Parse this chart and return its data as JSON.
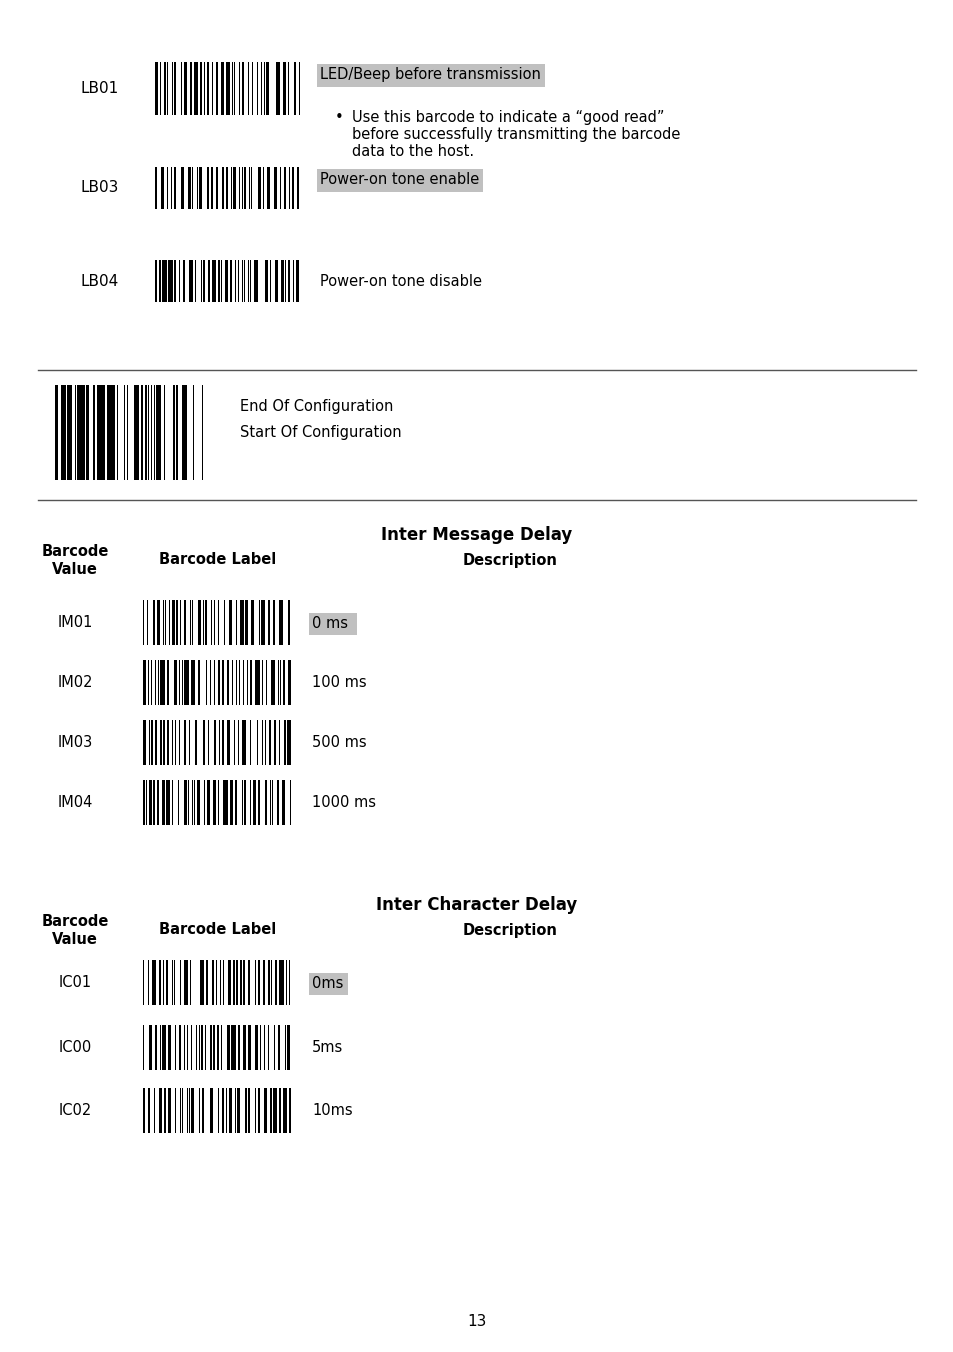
{
  "bg_color": "#ffffff",
  "page_number": "13",
  "section1": {
    "rows": [
      {
        "code": "LB01",
        "desc_highlighted": "LED/Beep before transmission",
        "desc_bullet": true,
        "highlighted": true
      },
      {
        "code": "LB03",
        "desc_highlighted": "Power-on tone enable",
        "desc_bullet": false,
        "highlighted": true
      },
      {
        "code": "LB04",
        "desc_highlighted": "Power-on tone disable",
        "desc_bullet": false,
        "highlighted": false
      }
    ]
  },
  "config_section": {
    "line1": "End Of Configuration",
    "line2": "Start Of Configuration"
  },
  "section2": {
    "title": "Inter Message Delay",
    "rows": [
      {
        "code": "IM01",
        "desc": "0 ms",
        "highlighted": true
      },
      {
        "code": "IM02",
        "desc": "100 ms",
        "highlighted": false
      },
      {
        "code": "IM03",
        "desc": "500 ms",
        "highlighted": false
      },
      {
        "code": "IM04",
        "desc": "1000 ms",
        "highlighted": false
      }
    ]
  },
  "section3": {
    "title": "Inter Character Delay",
    "rows": [
      {
        "code": "IC01",
        "desc": "0ms",
        "highlighted": true
      },
      {
        "code": "IC00",
        "desc": "5ms",
        "highlighted": false
      },
      {
        "code": "IC02",
        "desc": "10ms",
        "highlighted": false
      }
    ]
  },
  "highlight_color": "#c0c0c0",
  "barcode_color": "#000000",
  "text_color": "#000000",
  "font_family": "DejaVu Sans"
}
